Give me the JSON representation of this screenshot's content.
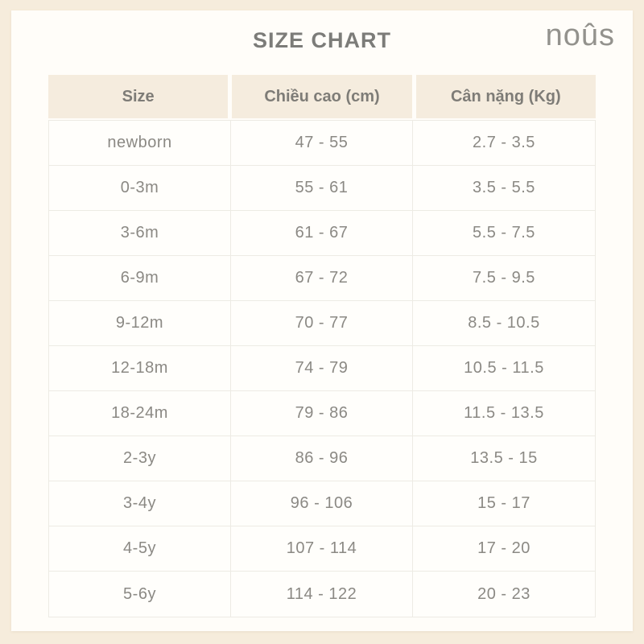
{
  "page": {
    "title": "SIZE CHART",
    "brand": "noûs"
  },
  "colors": {
    "frame_background": "#f6ecdc",
    "card_background": "#fffdf9",
    "header_row_background": "#f5ecde",
    "title_text": "#7c7c79",
    "cell_text": "#8b8984",
    "border": "#edebe4"
  },
  "table": {
    "columns": [
      "Size",
      "Chiều cao (cm)",
      "Cân nặng (Kg)"
    ],
    "rows": [
      {
        "size": "newborn",
        "height_cm": "47 - 55",
        "weight_kg": "2.7 - 3.5"
      },
      {
        "size": "0-3m",
        "height_cm": "55 - 61",
        "weight_kg": "3.5 - 5.5"
      },
      {
        "size": "3-6m",
        "height_cm": "61 - 67",
        "weight_kg": "5.5 - 7.5"
      },
      {
        "size": "6-9m",
        "height_cm": "67 - 72",
        "weight_kg": "7.5 - 9.5"
      },
      {
        "size": "9-12m",
        "height_cm": "70 - 77",
        "weight_kg": "8.5 - 10.5"
      },
      {
        "size": "12-18m",
        "height_cm": "74 - 79",
        "weight_kg": "10.5 - 11.5"
      },
      {
        "size": "18-24m",
        "height_cm": "79 - 86",
        "weight_kg": "11.5 - 13.5"
      },
      {
        "size": "2-3y",
        "height_cm": "86 - 96",
        "weight_kg": "13.5 - 15"
      },
      {
        "size": "3-4y",
        "height_cm": "96 - 106",
        "weight_kg": "15 - 17"
      },
      {
        "size": "4-5y",
        "height_cm": "107 - 114",
        "weight_kg": "17 - 20"
      },
      {
        "size": "5-6y",
        "height_cm": "114 - 122",
        "weight_kg": "20 - 23"
      }
    ]
  },
  "chart_data": {
    "type": "table",
    "title": "SIZE CHART",
    "columns": [
      "Size",
      "Chiều cao (cm)",
      "Cân nặng (Kg)"
    ],
    "rows": [
      [
        "newborn",
        "47 - 55",
        "2.7 - 3.5"
      ],
      [
        "0-3m",
        "55 - 61",
        "3.5 - 5.5"
      ],
      [
        "3-6m",
        "61 - 67",
        "5.5 - 7.5"
      ],
      [
        "6-9m",
        "67 - 72",
        "7.5 - 9.5"
      ],
      [
        "9-12m",
        "70 - 77",
        "8.5 - 10.5"
      ],
      [
        "12-18m",
        "74 - 79",
        "10.5 - 11.5"
      ],
      [
        "18-24m",
        "79 - 86",
        "11.5 - 13.5"
      ],
      [
        "2-3y",
        "86 - 96",
        "13.5 - 15"
      ],
      [
        "3-4y",
        "96 - 106",
        "15 - 17"
      ],
      [
        "4-5y",
        "107 - 114",
        "17 - 20"
      ],
      [
        "5-6y",
        "114 - 122",
        "20 - 23"
      ]
    ]
  }
}
